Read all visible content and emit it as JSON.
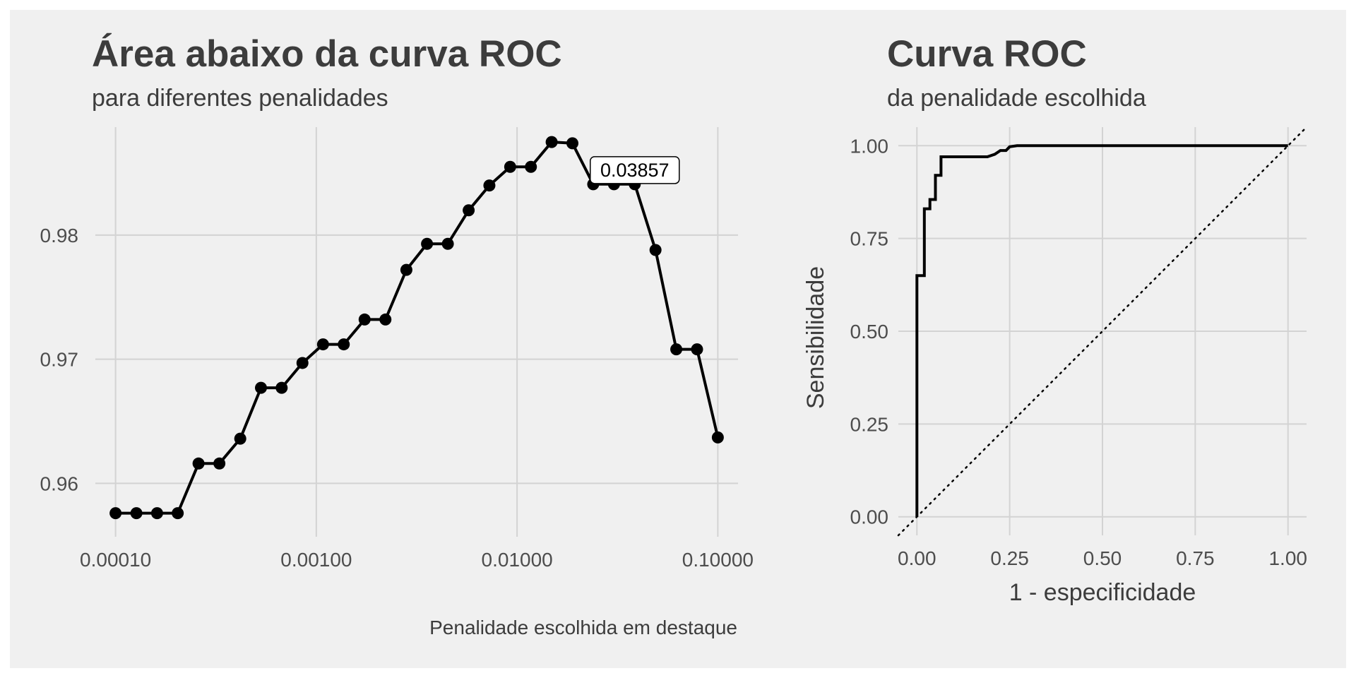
{
  "colors": {
    "page_background": "#ffffff",
    "panel_background": "#f0f0f0",
    "grid": "#d3d3d3",
    "line": "#000000",
    "title_text": "#3c3c3c",
    "axis_text": "#4d4d4d"
  },
  "chart_data": [
    {
      "type": "line",
      "title": "Área abaixo da curva ROC",
      "subtitle": "para diferentes penalidades",
      "caption": "Penalidade escolhida em destaque",
      "xlabel": "",
      "ylabel": "",
      "x_scale": "log10",
      "xlim": [
        7.93e-05,
        0.1261
      ],
      "ylim": [
        0.9557,
        0.9887
      ],
      "x_ticks": [
        0.0001,
        0.001,
        0.01,
        0.1
      ],
      "x_tick_labels": [
        "0.00010",
        "0.00100",
        "0.01000",
        "0.10000"
      ],
      "y_ticks": [
        0.96,
        0.97,
        0.98
      ],
      "y_tick_labels": [
        "0.96",
        "0.97",
        "0.98"
      ],
      "grid": true,
      "markers": true,
      "x": [
        0.0001,
        0.000127,
        0.000161,
        0.000204,
        0.000259,
        0.000329,
        0.000418,
        0.00053,
        0.000672,
        0.000853,
        0.00108,
        0.00137,
        0.00174,
        0.00221,
        0.00281,
        0.00356,
        0.00452,
        0.00574,
        0.00728,
        0.00924,
        0.01172,
        0.01487,
        0.01887,
        0.02395,
        0.03039,
        0.03857,
        0.04894,
        0.06211,
        0.07881,
        0.1
      ],
      "y": [
        0.9576,
        0.9576,
        0.9576,
        0.9576,
        0.9616,
        0.9616,
        0.9636,
        0.9677,
        0.9677,
        0.9697,
        0.9712,
        0.9712,
        0.9732,
        0.9732,
        0.9772,
        0.9793,
        0.9793,
        0.982,
        0.984,
        0.9855,
        0.9855,
        0.9875,
        0.9874,
        0.9841,
        0.9841,
        0.9841,
        0.9788,
        0.9708,
        0.9708,
        0.9637
      ],
      "highlight": {
        "x": 0.03857,
        "label": "0.03857"
      }
    },
    {
      "type": "line",
      "title": "Curva ROC",
      "subtitle": "da penalidade escolhida",
      "xlabel": "1 - especificidade",
      "ylabel": "Sensibilidade",
      "xlim": [
        -0.05,
        1.05
      ],
      "ylim": [
        -0.05,
        1.05
      ],
      "x_ticks": [
        0,
        0.25,
        0.5,
        0.75,
        1
      ],
      "x_tick_labels": [
        "0.00",
        "0.25",
        "0.50",
        "0.75",
        "1.00"
      ],
      "y_ticks": [
        0,
        0.25,
        0.5,
        0.75,
        1
      ],
      "y_tick_labels": [
        "0.00",
        "0.25",
        "0.50",
        "0.75",
        "1.00"
      ],
      "grid": true,
      "reference_line": "diagonal-dotted",
      "x": [
        0,
        0,
        0.02,
        0.02,
        0.035,
        0.035,
        0.05,
        0.05,
        0.065,
        0.065,
        0.08,
        0.08,
        0.19,
        0.21,
        0.225,
        0.24,
        0.25,
        0.25,
        0.27,
        1
      ],
      "y": [
        0,
        0.65,
        0.65,
        0.83,
        0.83,
        0.855,
        0.855,
        0.92,
        0.92,
        0.97,
        0.97,
        0.97,
        0.97,
        0.977,
        0.987,
        0.987,
        0.997,
        0.997,
        1,
        1
      ]
    }
  ]
}
